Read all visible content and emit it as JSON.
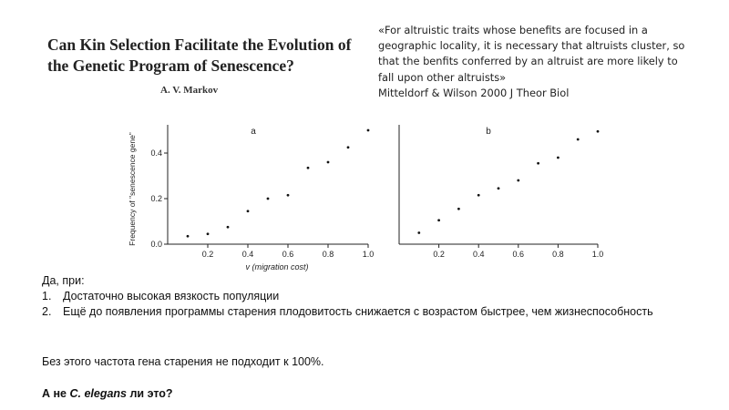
{
  "paper": {
    "title": "Can Kin Selection Facilitate the Evolution of the Genetic Program of Senescence?",
    "author": "A. V. Markov"
  },
  "quote": {
    "text": "«For altruistic traits whose benefits are focused in a geographic locality, it is necessary that altruists cluster, so that the benfits conferred by an altruist are more likely to fall upon other altruists»",
    "citation": "Mitteldorf & Wilson 2000 J Theor Biol"
  },
  "chart_data": [
    {
      "type": "scatter",
      "panel_label": "a",
      "ylabel": "Frequency of \"senescence gene\"",
      "xlabel": "v (migration cost)",
      "xlim": [
        0,
        1.0
      ],
      "ylim": [
        0,
        0.5
      ],
      "xticks": [
        "0.2",
        "0.4",
        "0.6",
        "0.8",
        "1.0"
      ],
      "yticks": [
        "0.0",
        "0.2",
        "0.4"
      ],
      "x": [
        0.1,
        0.2,
        0.3,
        0.4,
        0.5,
        0.6,
        0.7,
        0.8,
        0.9,
        1.0
      ],
      "y": [
        0.035,
        0.045,
        0.075,
        0.145,
        0.2,
        0.215,
        0.335,
        0.36,
        0.425,
        0.5
      ]
    },
    {
      "type": "scatter",
      "panel_label": "b",
      "ylabel": "",
      "xlabel": "",
      "xlim": [
        0,
        1.0
      ],
      "ylim": [
        0,
        0.5
      ],
      "xticks": [
        "0.2",
        "0.4",
        "0.6",
        "0.8",
        "1.0"
      ],
      "yticks": [],
      "x": [
        0.1,
        0.2,
        0.3,
        0.4,
        0.5,
        0.6,
        0.7,
        0.8,
        0.9,
        1.0
      ],
      "y": [
        0.05,
        0.105,
        0.155,
        0.215,
        0.245,
        0.28,
        0.355,
        0.38,
        0.46,
        0.495
      ]
    }
  ],
  "body": {
    "intro": "Да, при:",
    "items": [
      {
        "num": "1.",
        "text": "Достаточно высокая вязкость популяции"
      },
      {
        "num": "2.",
        "text": "Ещё до появления программы старения плодовитость снижается с возрастом быстрее, чем жизнеспособность"
      }
    ],
    "note": "Без этого частота гена старения не подходит к 100%.",
    "question_prefix": "А не ",
    "question_species": "C. elegans",
    "question_suffix": " ли это?"
  }
}
